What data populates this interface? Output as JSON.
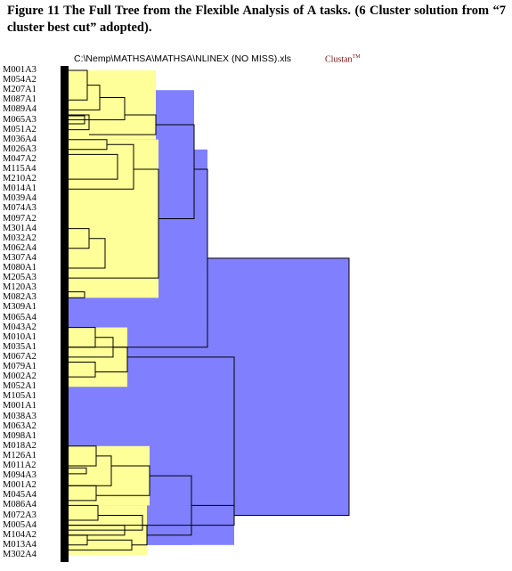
{
  "caption": "Figure 11 The Full Tree from the Flexible Analysis of A tasks. (6 Cluster solution from “7 cluster best cut” adopted).",
  "file_path": "C:\\Nemp\\MATHSA\\MATHSA\\NLINEX (NO MISS).xls",
  "brand": "Clustan",
  "brand_mark": "TM",
  "colors": {
    "cluster": "#ffff99",
    "upper": "#8080ff",
    "line": "#000000",
    "brand": "#7a1010"
  },
  "leaves": [
    "M001A3",
    "M054A2",
    "M207A1",
    "M087A1",
    "M089A4",
    "M065A3",
    "M051A2",
    "M036A4",
    "M026A3",
    "M047A2",
    "M115A4",
    "M210A2",
    "M014A1",
    "M039A4",
    "M074A3",
    "M097A2",
    "M301A4",
    "M032A2",
    "M062A4",
    "M307A4",
    "M080A1",
    "M205A3",
    "M120A3",
    "M082A3",
    "M309A1",
    "M065A4",
    "M043A2",
    "M010A1",
    "M035A1",
    "M067A2",
    "M079A1",
    "M002A2",
    "M052A1",
    "M105A1",
    "M001A1",
    "M038A3",
    "M063A2",
    "M098A1",
    "M018A2",
    "M126A1",
    "M011A2",
    "M094A3",
    "M001A2",
    "M045A4",
    "M086A4",
    "M072A3",
    "M005A4",
    "M104A2",
    "M013A4",
    "M302A4"
  ]
}
